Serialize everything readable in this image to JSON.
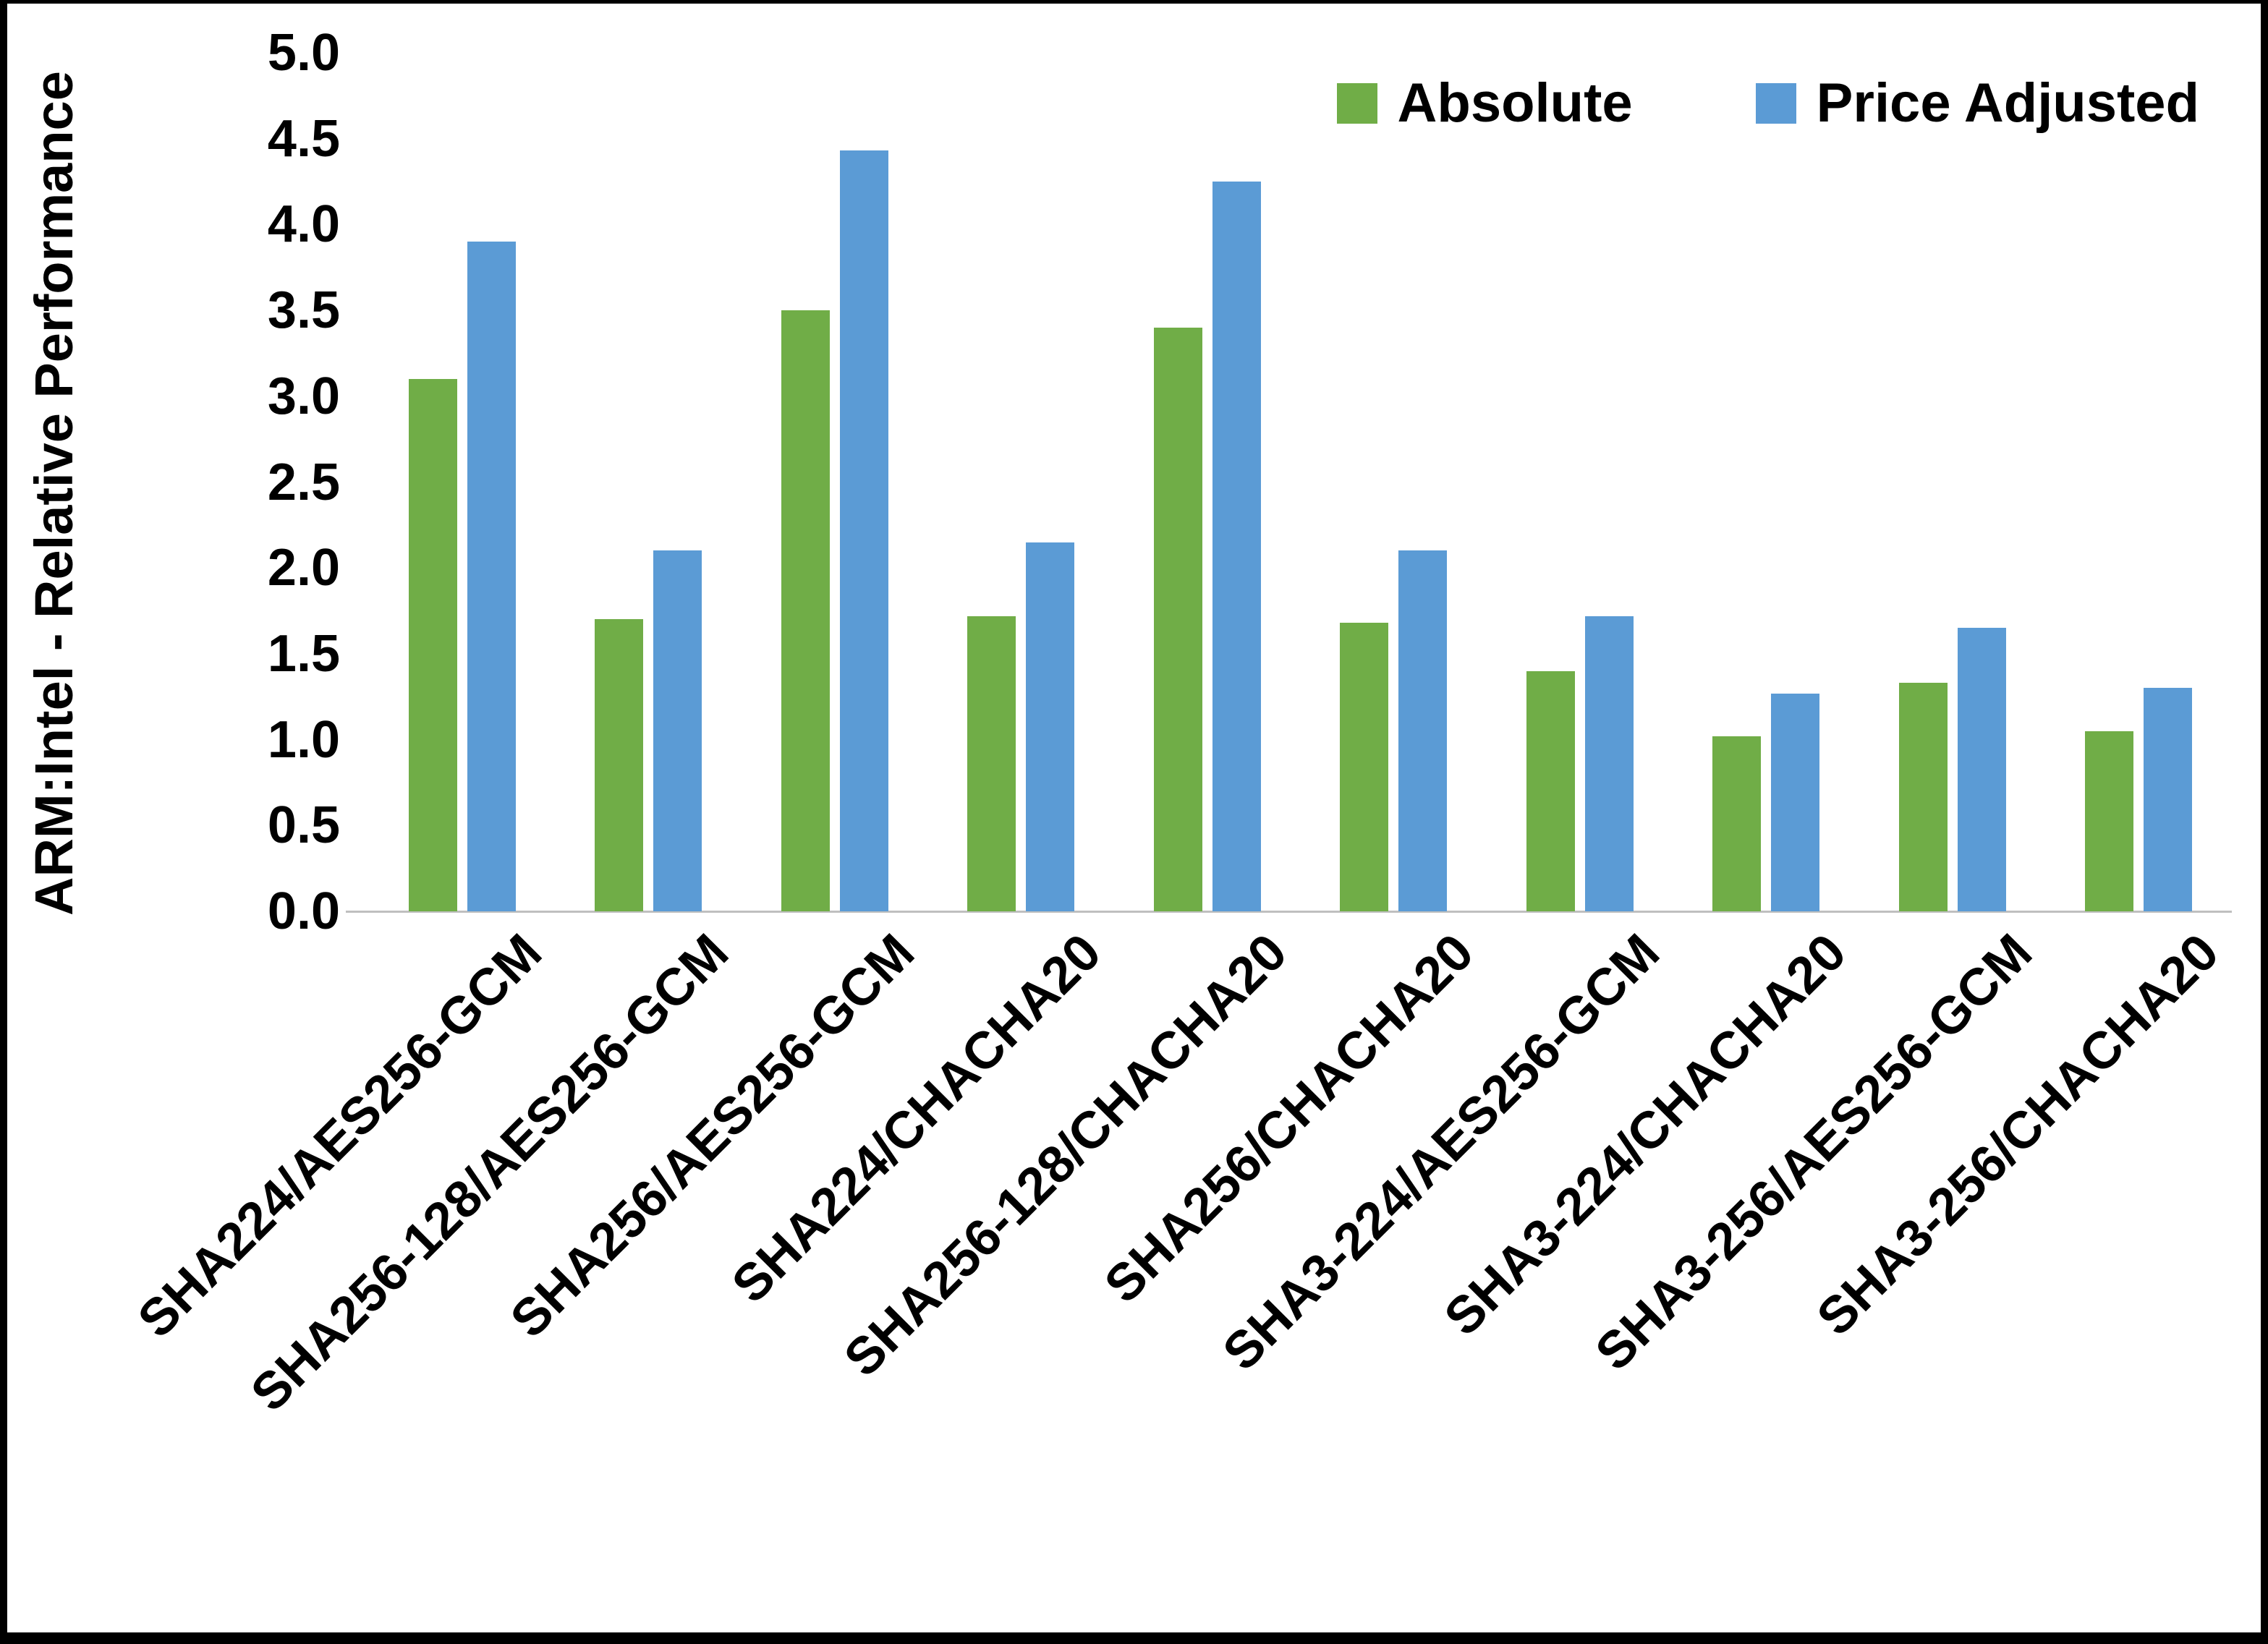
{
  "chart_data": {
    "type": "bar",
    "title": "",
    "xlabel": "",
    "ylabel": "ARM:Intel - Relative Performance",
    "ylim": [
      0,
      5
    ],
    "ytick_step": 0.5,
    "yticks": [
      "5.0",
      "4.5",
      "4.0",
      "3.5",
      "3.0",
      "2.5",
      "2.0",
      "1.5",
      "1.0",
      "0.5",
      "0.0"
    ],
    "grid": false,
    "legend_position": "top-right",
    "axis_line_color": "#BFBFBF",
    "categories": [
      "SHA224/AES256-GCM",
      "SHA256-128/AES256-GCM",
      "SHA256/AES256-GCM",
      "SHA224/CHACHA20",
      "SHA256-128/CHACHA20",
      "SHA256/CHACHA20",
      "SHA3-224/AES256-GCM",
      "SHA3-224/CHACHA20",
      "SHA3-256/AES256-GCM",
      "SHA3-256/CHACHA20"
    ],
    "series": [
      {
        "name": "Absolute",
        "color": "#70AD47",
        "values": [
          3.1,
          1.7,
          3.5,
          1.72,
          3.4,
          1.68,
          1.4,
          1.02,
          1.33,
          1.05
        ]
      },
      {
        "name": "Price Adjusted",
        "color": "#5B9BD5",
        "values": [
          3.9,
          2.1,
          4.43,
          2.15,
          4.25,
          2.1,
          1.72,
          1.27,
          1.65,
          1.3
        ]
      }
    ]
  }
}
